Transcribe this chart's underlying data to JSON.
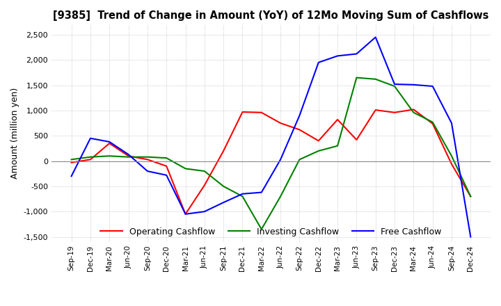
{
  "title": "[9385]  Trend of Change in Amount (YoY) of 12Mo Moving Sum of Cashflows",
  "ylabel": "Amount (million yen)",
  "ylim": [
    -1600,
    2700
  ],
  "yticks": [
    -1500,
    -1000,
    -500,
    0,
    500,
    1000,
    1500,
    2000,
    2500
  ],
  "x_labels": [
    "Sep-19",
    "Dec-19",
    "Mar-20",
    "Jun-20",
    "Sep-20",
    "Dec-20",
    "Mar-21",
    "Jun-21",
    "Sep-21",
    "Dec-21",
    "Mar-22",
    "Jun-22",
    "Sep-22",
    "Dec-22",
    "Mar-23",
    "Jun-23",
    "Sep-23",
    "Dec-23",
    "Mar-24",
    "Jun-24",
    "Sep-24",
    "Dec-24"
  ],
  "operating": [
    -30,
    30,
    350,
    100,
    30,
    -100,
    -1050,
    -480,
    200,
    970,
    960,
    750,
    620,
    400,
    820,
    420,
    1010,
    960,
    1020,
    740,
    -60,
    -700
  ],
  "investing": [
    30,
    80,
    100,
    80,
    80,
    60,
    -150,
    -200,
    -500,
    -700,
    -1350,
    -700,
    30,
    200,
    300,
    1650,
    1620,
    1480,
    960,
    770,
    100,
    -700
  ],
  "free": [
    -300,
    450,
    380,
    130,
    -200,
    -280,
    -1050,
    -1000,
    -820,
    -650,
    -620,
    30,
    900,
    1950,
    2080,
    2120,
    2450,
    1520,
    1510,
    1480,
    750,
    -1500
  ],
  "operating_color": "#ff0000",
  "investing_color": "#008000",
  "free_color": "#0000ff",
  "bg_color": "#ffffff",
  "grid_color": "#aaaaaa",
  "legend_labels": [
    "Operating Cashflow",
    "Investing Cashflow",
    "Free Cashflow"
  ]
}
